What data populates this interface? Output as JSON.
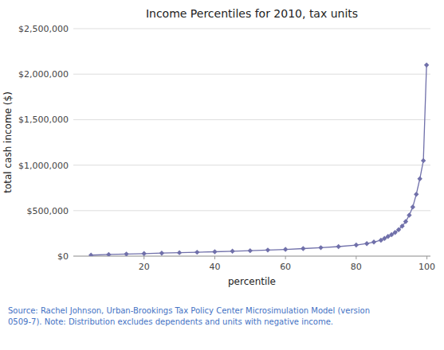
{
  "chart_data": {
    "type": "line",
    "title": "Income Percentiles for 2010, tax units",
    "x_label": "percentile",
    "y_label": "total cash income ($)",
    "annotations": [
      {
        "text": "Source: Rachel Johnson, Urban-Brookings Tax Policy Center Microsimulation Model (version\n0509-7). Note: Distribution excludes dependents and units with negative income.",
        "color": "#4472C4"
      }
    ],
    "x": [
      5,
      10,
      15,
      20,
      25,
      30,
      35,
      40,
      45,
      50,
      55,
      60,
      65,
      70,
      75,
      80,
      83,
      85,
      87,
      88,
      89,
      90,
      91,
      92,
      93,
      94,
      95,
      96,
      97,
      98,
      99,
      99.9
    ],
    "values": [
      11000,
      18000,
      23000,
      28000,
      33000,
      38000,
      43000,
      48000,
      54000,
      60000,
      67000,
      74000,
      83000,
      93000,
      105000,
      122000,
      138000,
      155000,
      175000,
      195000,
      216000,
      236000,
      260000,
      290000,
      330000,
      380000,
      450000,
      540000,
      680000,
      850000,
      1050000,
      2100000
    ],
    "color": "#7070aa",
    "marker": "diamond",
    "xlim": [
      0,
      101
    ],
    "ylim": [
      0,
      2500000
    ],
    "xticks": [
      20,
      40,
      60,
      80,
      100
    ],
    "yticks": [
      {
        "value": 0,
        "label": "$0"
      },
      {
        "value": 500000,
        "label": "$500,000"
      },
      {
        "value": 1000000,
        "label": "$1,000,000"
      },
      {
        "value": 1500000,
        "label": "$1,500,000"
      },
      {
        "value": 2000000,
        "label": "$2,000,000"
      },
      {
        "value": 2500000,
        "label": "$2,500,000"
      }
    ],
    "grid": true
  }
}
